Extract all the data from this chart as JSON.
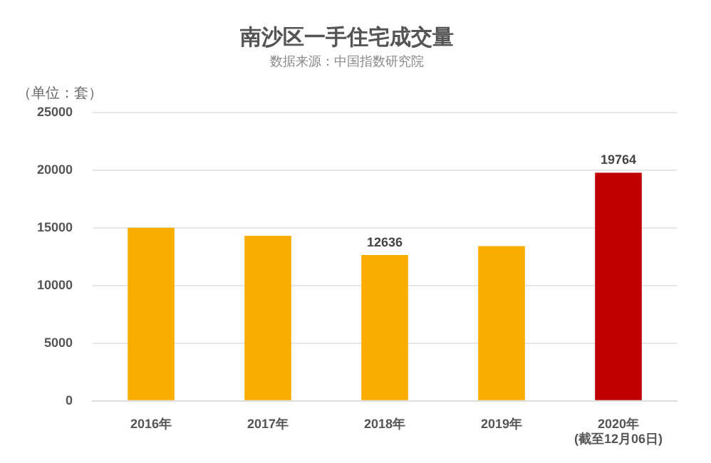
{
  "chart_data": {
    "type": "bar",
    "title": "南沙区一手住宅成交量",
    "subtitle": "数据来源：中国指数研究院",
    "ylabel": "（单位：套）",
    "categories": [
      "2016年",
      "2017年",
      "2018年",
      "2019年",
      "2020年\n(截至12月06日)"
    ],
    "values": [
      15000,
      14300,
      12636,
      13400,
      19764
    ],
    "colors": [
      "#f9ad00",
      "#f9ad00",
      "#f9ad00",
      "#f9ad00",
      "#c00000"
    ],
    "value_labels": [
      null,
      null,
      "12636",
      null,
      "19764"
    ],
    "ylim": [
      0,
      25000
    ],
    "yticks": [
      0,
      5000,
      10000,
      15000,
      20000,
      25000
    ],
    "grid": "y",
    "legend": false
  }
}
